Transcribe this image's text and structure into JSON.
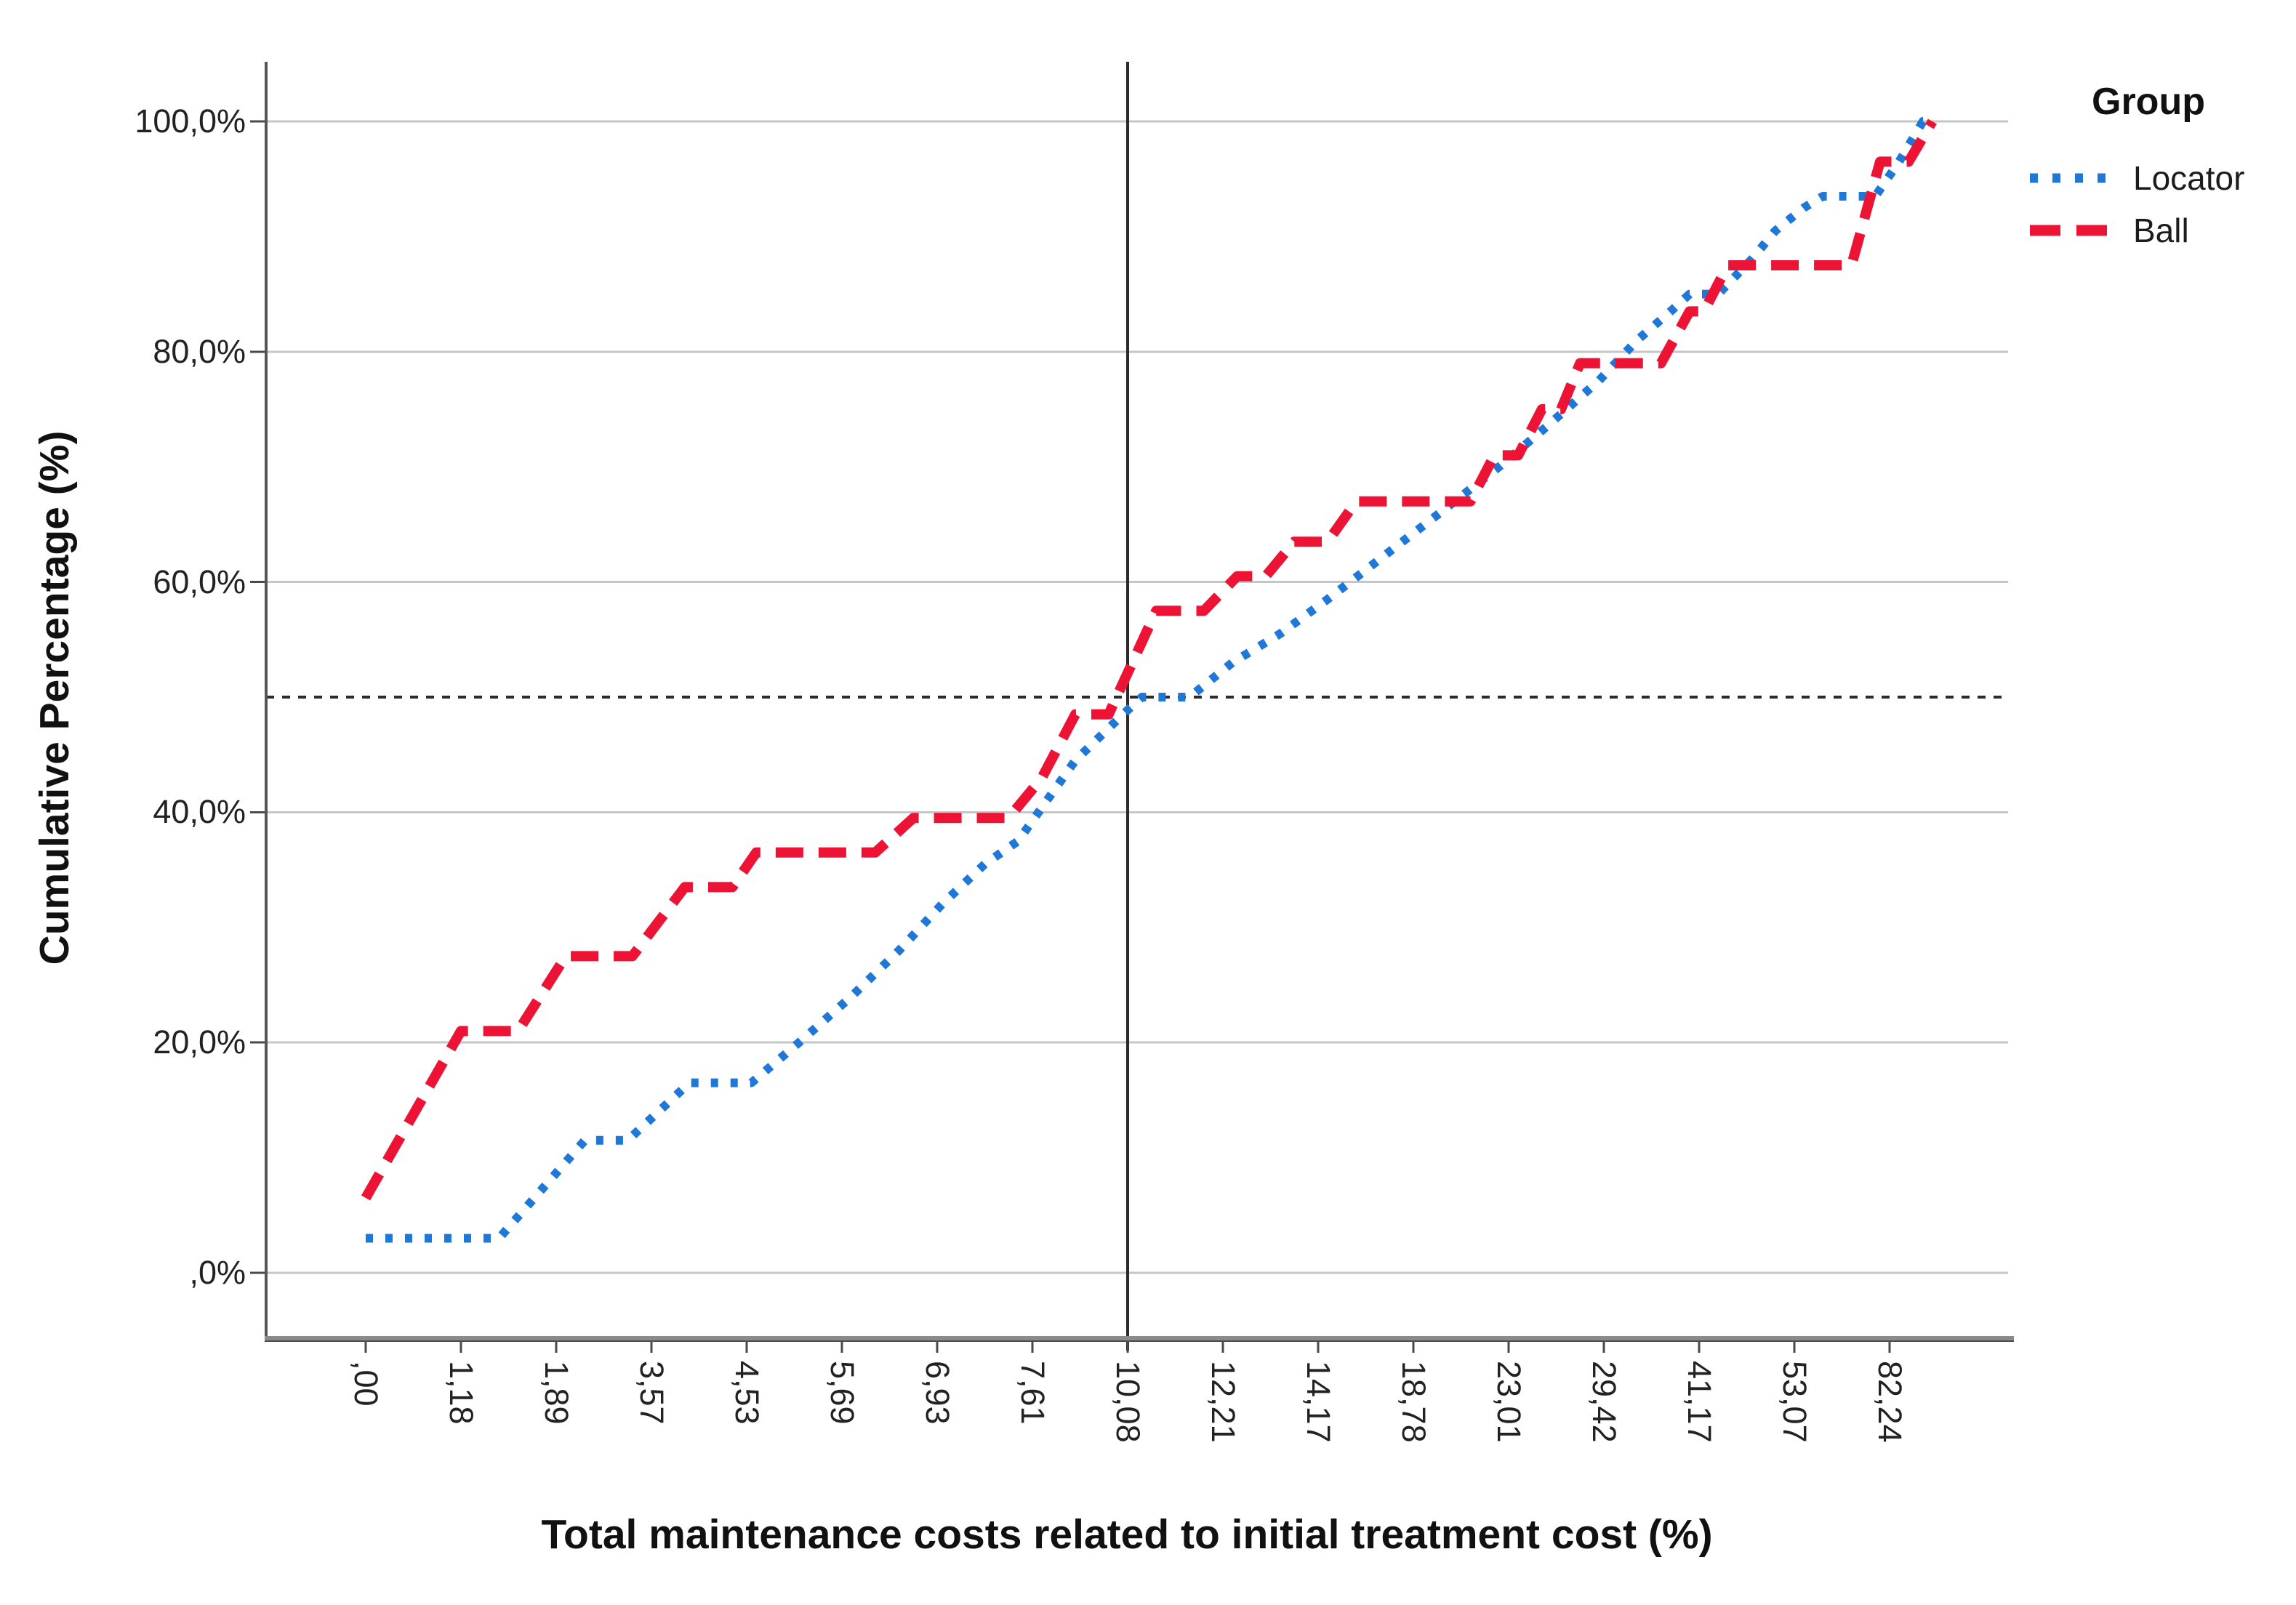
{
  "figure": {
    "background": "#ffffff",
    "grid_color": "#c6c6c6",
    "axis_color": "#6f6f6f",
    "tick_color": "#4a4a4a",
    "ref_line_color": "#2b2b2b",
    "text_color": "#222222"
  },
  "x_axis": {
    "title": "Total maintenance costs related to initial treatment cost (%)",
    "labels": [
      ",00",
      "1,18",
      "1,89",
      "3,57",
      "4,53",
      "5,69",
      "6,93",
      "7,61",
      "10,08",
      "12,21",
      "14,17",
      "18,78",
      "23,01",
      "29,42",
      "41,17",
      "53,07",
      "82,24"
    ]
  },
  "y_axis": {
    "title": "Cumulative Percentage (%)",
    "ticks": [
      {
        "label": "100,0%",
        "value": 100
      },
      {
        "label": "80,0%",
        "value": 80
      },
      {
        "label": "60,0%",
        "value": 60
      },
      {
        "label": "40,0%",
        "value": 40
      },
      {
        "label": "20,0%",
        "value": 20
      },
      {
        "label": ",0%",
        "value": 0
      }
    ]
  },
  "legend": {
    "title": "Group"
  },
  "chart_data": {
    "type": "line",
    "title": "",
    "xlabel": "Total maintenance costs related to initial treatment cost (%)",
    "ylabel": "Cumulative Percentage (%)",
    "ylim": [
      0,
      100
    ],
    "grid": "horizontal",
    "legend_position": "top-right",
    "x_category_labels": [
      ",00",
      "1,18",
      "1,89",
      "3,57",
      "4,53",
      "5,69",
      "6,93",
      "7,61",
      "10,08",
      "12,21",
      "14,17",
      "18,78",
      "23,01",
      "29,42",
      "41,17",
      "53,07",
      "82,24"
    ],
    "units_note": "points are [x,y]; x in label-index units 0..16 along the category axis (curves extend to 16.45), y = cumulative percent",
    "reference_lines": {
      "vertical_at_label": "10,08",
      "vertical_x_index": 8,
      "horizontal_at_percent": 50
    },
    "series": [
      {
        "name": "Locator",
        "color": "#1f78d8",
        "style": "dotted",
        "points": [
          [
            0,
            3
          ],
          [
            1.4,
            3
          ],
          [
            2.3,
            11.5
          ],
          [
            2.75,
            11.5
          ],
          [
            3.4,
            16.5
          ],
          [
            4.05,
            16.5
          ],
          [
            4.55,
            20
          ],
          [
            5.1,
            24
          ],
          [
            5.6,
            28
          ],
          [
            6.05,
            32
          ],
          [
            6.5,
            35.5
          ],
          [
            6.85,
            37.5
          ],
          [
            7.45,
            44.5
          ],
          [
            7.95,
            48.5
          ],
          [
            8.15,
            50
          ],
          [
            8.65,
            50
          ],
          [
            9.1,
            53
          ],
          [
            9.6,
            55.5
          ],
          [
            10.1,
            58.5
          ],
          [
            10.65,
            62
          ],
          [
            11.2,
            65.5
          ],
          [
            11.9,
            70
          ],
          [
            12.4,
            73.5
          ],
          [
            12.95,
            77.5
          ],
          [
            13.35,
            81
          ],
          [
            13.7,
            83.5
          ],
          [
            13.9,
            85
          ],
          [
            14.2,
            85
          ],
          [
            14.55,
            88
          ],
          [
            14.8,
            90.5
          ],
          [
            15.1,
            92.5
          ],
          [
            15.3,
            93.5
          ],
          [
            15.85,
            93.5
          ],
          [
            16.1,
            96.5
          ],
          [
            16.35,
            100
          ],
          [
            16.45,
            100
          ]
        ]
      },
      {
        "name": "Ball",
        "color": "#ec1334",
        "style": "dashed",
        "points": [
          [
            0,
            6.5
          ],
          [
            1,
            21
          ],
          [
            1.6,
            21
          ],
          [
            2.1,
            27.5
          ],
          [
            2.8,
            27.5
          ],
          [
            3.35,
            33.5
          ],
          [
            3.85,
            33.5
          ],
          [
            4.1,
            36.5
          ],
          [
            5.35,
            36.5
          ],
          [
            5.75,
            39.5
          ],
          [
            6.75,
            39.5
          ],
          [
            7.1,
            43
          ],
          [
            7.45,
            48.5
          ],
          [
            7.8,
            48.5
          ],
          [
            8.3,
            57.5
          ],
          [
            8.8,
            57.5
          ],
          [
            9.15,
            60.5
          ],
          [
            9.45,
            60.5
          ],
          [
            9.75,
            63.5
          ],
          [
            10.1,
            63.5
          ],
          [
            10.4,
            67
          ],
          [
            11.6,
            67
          ],
          [
            11.85,
            71
          ],
          [
            12.1,
            71
          ],
          [
            12.35,
            75
          ],
          [
            12.55,
            75
          ],
          [
            12.75,
            79
          ],
          [
            13.6,
            79
          ],
          [
            13.9,
            83.5
          ],
          [
            14.05,
            83.5
          ],
          [
            14.3,
            87.5
          ],
          [
            15.6,
            87.5
          ],
          [
            15.9,
            96.5
          ],
          [
            16.2,
            96.5
          ],
          [
            16.45,
            100
          ]
        ]
      }
    ]
  }
}
